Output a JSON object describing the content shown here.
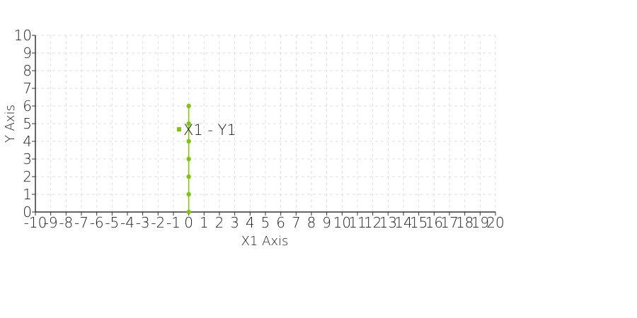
{
  "chart_data": {
    "type": "line",
    "xlabel": "X1 Axis",
    "ylabel": "Y Axis",
    "xlim": [
      -10,
      20
    ],
    "ylim": [
      0,
      10
    ],
    "x_ticks": [
      "-10",
      "-9",
      "-8",
      "-7",
      "-6",
      "-5",
      "-4",
      "-3",
      "-2",
      "-1",
      "0",
      "1",
      "2",
      "3",
      "4",
      "5",
      "6",
      "7",
      "8",
      "9",
      "10",
      "11",
      "12",
      "13",
      "14",
      "15",
      "16",
      "17",
      "18",
      "19",
      "20"
    ],
    "y_ticks": [
      "0",
      "1",
      "2",
      "3",
      "4",
      "5",
      "6",
      "7",
      "8",
      "9",
      "10"
    ],
    "grid": true,
    "legend_position": "inside-left",
    "series": [
      {
        "name": "X1 - Y1",
        "color": "#7ac70c",
        "points": [
          {
            "x": 0,
            "y": 0
          },
          {
            "x": 0,
            "y": 1
          },
          {
            "x": 0,
            "y": 2
          },
          {
            "x": 0,
            "y": 3
          },
          {
            "x": 0,
            "y": 4
          },
          {
            "x": 0,
            "y": 5
          },
          {
            "x": 0,
            "y": 6
          }
        ]
      }
    ]
  }
}
